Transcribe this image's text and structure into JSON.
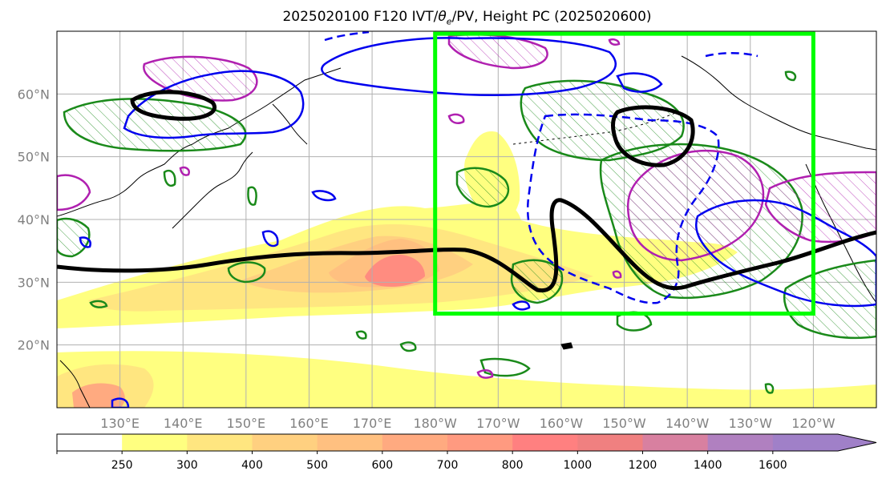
{
  "title_parts": {
    "prefix": "2025020100 F120 IVT/",
    "theta": "θ",
    "sub": "e",
    "suffix": "/PV, Height PC (2025020600)"
  },
  "map": {
    "lon_range": [
      120,
      250
    ],
    "lat_range": [
      10,
      70
    ],
    "lon_ticks": [
      {
        "lon": 130,
        "label": "130°E"
      },
      {
        "lon": 140,
        "label": "140°E"
      },
      {
        "lon": 150,
        "label": "150°E"
      },
      {
        "lon": 160,
        "label": "160°E"
      },
      {
        "lon": 170,
        "label": "170°E"
      },
      {
        "lon": 180,
        "label": "180°W"
      },
      {
        "lon": 190,
        "label": "170°W"
      },
      {
        "lon": 200,
        "label": "160°W"
      },
      {
        "lon": 210,
        "label": "150°W"
      },
      {
        "lon": 220,
        "label": "140°W"
      },
      {
        "lon": 230,
        "label": "130°W"
      },
      {
        "lon": 240,
        "label": "120°W"
      }
    ],
    "lat_ticks": [
      {
        "lat": 20,
        "label": "20°N"
      },
      {
        "lat": 30,
        "label": "30°N"
      },
      {
        "lat": 40,
        "label": "40°N"
      },
      {
        "lat": 50,
        "label": "50°N"
      },
      {
        "lat": 60,
        "label": "60°N"
      }
    ],
    "highlight_box": {
      "lon": [
        180,
        240
      ],
      "lat": [
        25,
        69.6
      ],
      "color": "#00ff00"
    }
  },
  "colorbar": {
    "levels": [
      "250",
      "300",
      "400",
      "500",
      "600",
      "700",
      "800",
      "1000",
      "1200",
      "1400",
      "1600"
    ],
    "colors": [
      "#ffffff",
      "#ffff80",
      "#ffe680",
      "#ffd080",
      "#ffc080",
      "#ffaa80",
      "#ff9a80",
      "#ff8080",
      "#f08080",
      "#d880a0",
      "#b080c0",
      "#a080c8"
    ]
  }
}
